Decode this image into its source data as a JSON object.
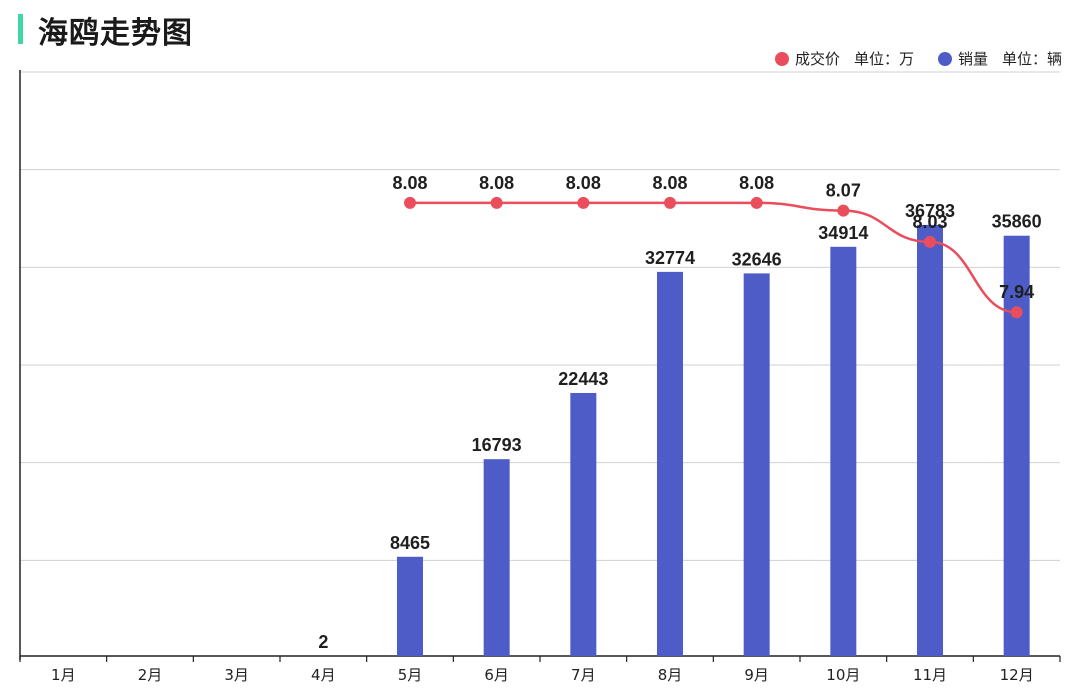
{
  "title": "海鸥走势图",
  "legend": {
    "price": {
      "name": "成交价",
      "unit": "单位：万",
      "color": "#ea4d5b"
    },
    "sales": {
      "name": "销量",
      "unit": "单位：辆",
      "color": "#4e5cc8"
    }
  },
  "chart_data": {
    "type": "bar",
    "title": "海鸥走势图",
    "categories": [
      "1月",
      "2月",
      "3月",
      "4月",
      "5月",
      "6月",
      "7月",
      "8月",
      "9月",
      "10月",
      "11月",
      "12月"
    ],
    "series": [
      {
        "name": "销量",
        "type": "bar",
        "unit": "辆",
        "values": [
          null,
          null,
          null,
          2,
          8465,
          16793,
          22443,
          32774,
          32646,
          34914,
          36783,
          35860
        ],
        "labels": [
          "",
          "",
          "",
          "2",
          "8465",
          "16793",
          "22443",
          "32774",
          "32646",
          "34914",
          "36783",
          "35860"
        ]
      },
      {
        "name": "成交价",
        "type": "line",
        "unit": "万",
        "values": [
          null,
          null,
          null,
          null,
          8.08,
          8.08,
          8.08,
          8.08,
          8.08,
          8.07,
          8.03,
          7.94
        ],
        "labels": [
          "",
          "",
          "",
          "",
          "8.08",
          "8.08",
          "8.08",
          "8.08",
          "8.08",
          "8.07",
          "8.03",
          "7.94"
        ]
      }
    ],
    "bar_ylim": [
      0,
      50000
    ],
    "line_ylim": [
      7.5,
      8.25
    ],
    "grid": true,
    "legend_position": "top-right",
    "xlabel": "",
    "ylabel": ""
  }
}
